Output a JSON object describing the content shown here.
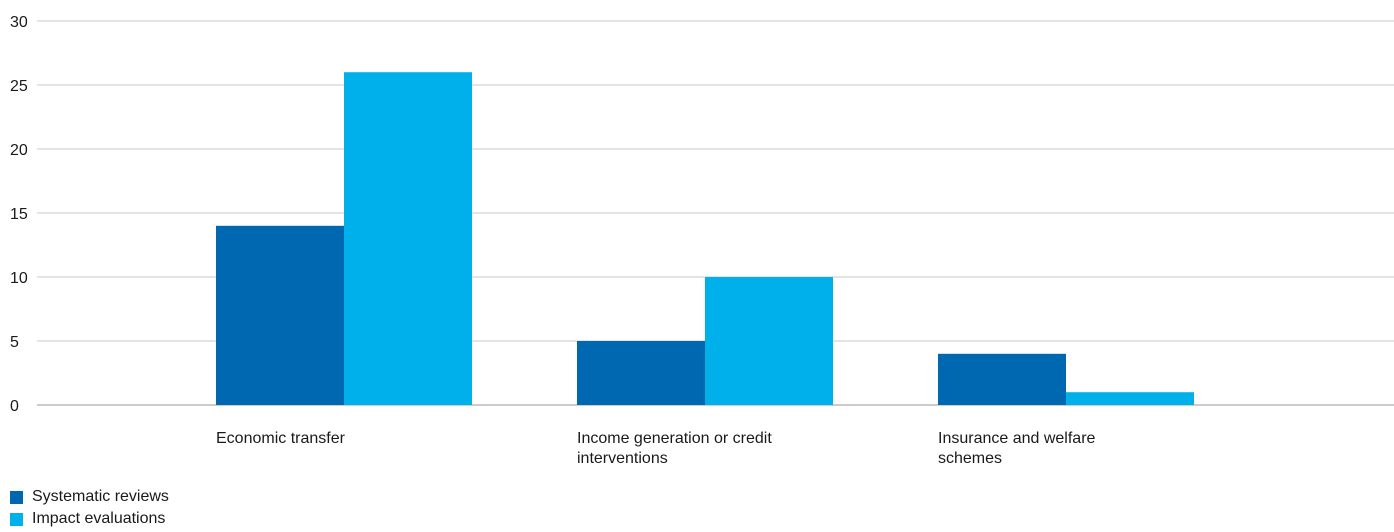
{
  "chart_data": {
    "type": "bar",
    "title": "",
    "xlabel": "",
    "ylabel": "",
    "categories": [
      [
        "Economic transfer"
      ],
      [
        "Income generation or credit",
        "interventions"
      ],
      [
        "Insurance and welfare",
        "schemes"
      ]
    ],
    "series": [
      {
        "name": "Systematic reviews",
        "color": "#0067b1",
        "values": [
          14,
          5,
          4
        ]
      },
      {
        "name": "Impact evaluations",
        "color": "#00b0ea",
        "values": [
          26,
          10,
          1
        ]
      }
    ],
    "ylim": [
      0,
      30
    ],
    "yticks": [
      0,
      5,
      10,
      15,
      20,
      25,
      30
    ],
    "grid": true,
    "legend_position": "bottom-left"
  }
}
